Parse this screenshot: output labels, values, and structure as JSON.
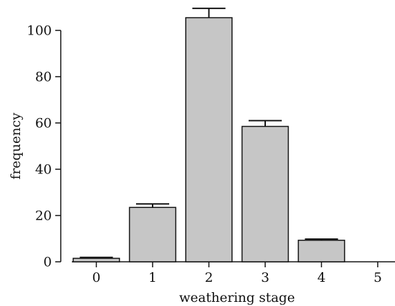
{
  "chart_data": {
    "type": "bar",
    "title": "",
    "xlabel": "weathering stage",
    "ylabel": "frequency",
    "categories": [
      "0",
      "1",
      "2",
      "3",
      "4",
      "5"
    ],
    "values": [
      1.5,
      23.5,
      105.5,
      58.5,
      9.3,
      0
    ],
    "error_plus": [
      0.4,
      1.5,
      4.0,
      2.5,
      0.5,
      0
    ],
    "ylim": [
      0,
      110
    ],
    "yticks": [
      0,
      20,
      40,
      60,
      80,
      100
    ],
    "grid": false,
    "legend": "none",
    "colors": {
      "bar_fill": "#c6c6c6",
      "bar_stroke": "#111111",
      "axis": "#111111"
    }
  }
}
